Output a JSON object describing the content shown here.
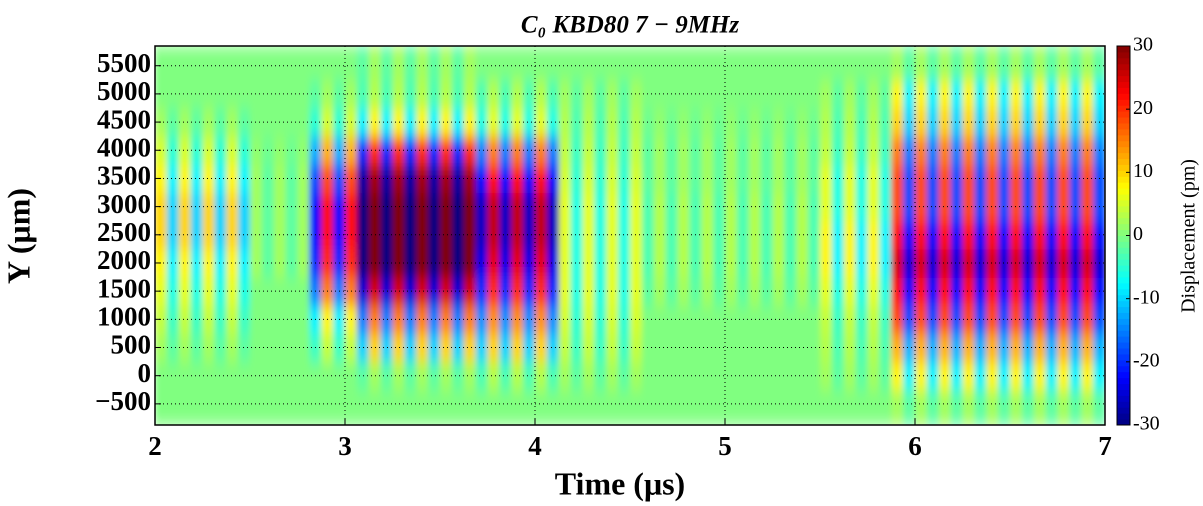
{
  "chart_data": {
    "type": "heatmap",
    "title": "C₀   KBD80   7 − 9MHz",
    "xlabel": "Time (μs)",
    "ylabel": "Y (μm)",
    "colorbar_label": "Displacement (pm)",
    "xlim": [
      2,
      7
    ],
    "ylim": [
      -875,
      5850
    ],
    "xticks": [
      2,
      3,
      4,
      5,
      6,
      7
    ],
    "yticks": [
      {
        "value": -500,
        "label": "−500"
      },
      0,
      500,
      1000,
      1500,
      2000,
      2500,
      3000,
      3500,
      4000,
      4500,
      5000,
      5500
    ],
    "clim": [
      -30,
      30
    ],
    "cticks": [
      {
        "value": -30,
        "label": "-30"
      },
      {
        "value": -20,
        "label": "-20"
      },
      {
        "value": -10,
        "label": "-10"
      },
      0,
      10,
      20,
      30
    ],
    "colormap": "jet",
    "grid": true,
    "x": [
      2.03125,
      2.09375,
      2.15625,
      2.21875,
      2.28125,
      2.34375,
      2.40625,
      2.46875,
      2.53125,
      2.59375,
      2.65625,
      2.71875,
      2.78125,
      2.84375,
      2.90625,
      2.96875,
      3.03125,
      3.09375,
      3.15625,
      3.21875,
      3.28125,
      3.34375,
      3.40625,
      3.46875,
      3.53125,
      3.59375,
      3.65625,
      3.71875,
      3.78125,
      3.84375,
      3.90625,
      3.96875,
      4.03125,
      4.09375,
      4.15625,
      4.21875,
      4.28125,
      4.34375,
      4.40625,
      4.46875,
      4.53125,
      4.59375,
      4.65625,
      4.71875,
      4.78125,
      4.84375,
      4.90625,
      4.96875,
      5.03125,
      5.09375,
      5.15625,
      5.21875,
      5.28125,
      5.34375,
      5.40625,
      5.46875,
      5.53125,
      5.59375,
      5.65625,
      5.71875,
      5.78125,
      5.84375,
      5.90625,
      5.96875,
      6.03125,
      6.09375,
      6.15625,
      6.21875,
      6.28125,
      6.34375,
      6.40625,
      6.46875,
      6.53125,
      6.59375,
      6.65625,
      6.71875,
      6.78125,
      6.84375,
      6.90625,
      6.96875
    ],
    "y": [
      -500,
      0,
      500,
      1000,
      1500,
      2000,
      2500,
      3000,
      3500,
      4000,
      4500,
      5000,
      5500
    ],
    "z": [
      [
        0,
        0,
        0,
        0,
        0,
        0,
        0,
        0,
        0,
        0,
        0,
        0,
        0,
        0,
        0,
        0,
        0,
        0,
        0,
        0,
        0,
        0,
        0,
        0,
        0,
        0,
        0,
        0,
        0,
        0,
        0,
        0,
        0,
        0,
        0,
        0,
        0,
        0,
        0,
        0,
        0,
        0,
        0,
        0,
        0,
        0,
        0,
        0,
        0,
        0,
        0,
        0,
        0,
        0,
        0,
        0,
        0,
        0,
        0,
        0,
        0,
        0,
        2,
        -2,
        2,
        -2,
        2,
        -2,
        2,
        -2,
        2,
        -2,
        2,
        -2,
        2,
        -2,
        2,
        -2,
        2,
        -2
      ],
      [
        0,
        0,
        0,
        0,
        0,
        0,
        0,
        0,
        0,
        0,
        0,
        0,
        0,
        0,
        0,
        0,
        0,
        -2,
        2,
        -2,
        2,
        -2,
        2,
        -2,
        2,
        -2,
        2,
        -3,
        3,
        -3,
        3,
        -3,
        3,
        -3,
        2,
        -2,
        2,
        -2,
        2,
        -2,
        2,
        0,
        0,
        0,
        0,
        0,
        0,
        0,
        0,
        0,
        0,
        0,
        0,
        0,
        0,
        0,
        2,
        -2,
        2,
        -2,
        2,
        -2,
        8,
        -8,
        8,
        -8,
        8,
        -8,
        8,
        -8,
        8,
        -8,
        8,
        -8,
        8,
        -8,
        8,
        -8,
        8,
        -8
      ],
      [
        2,
        -2,
        2,
        -2,
        2,
        -2,
        2,
        -2,
        0,
        0,
        0,
        0,
        0,
        -4,
        4,
        -4,
        4,
        -10,
        10,
        -10,
        10,
        -10,
        10,
        -10,
        10,
        -10,
        10,
        -10,
        10,
        -10,
        10,
        -10,
        10,
        -10,
        4,
        -4,
        4,
        -4,
        4,
        -4,
        4,
        0,
        0,
        0,
        0,
        0,
        0,
        0,
        0,
        0,
        0,
        0,
        0,
        0,
        0,
        0,
        3,
        -3,
        3,
        -3,
        3,
        -3,
        12,
        -12,
        12,
        -12,
        12,
        -12,
        12,
        -12,
        12,
        -12,
        12,
        -12,
        12,
        -12,
        12,
        -12,
        12,
        -12
      ],
      [
        4,
        -4,
        4,
        -4,
        4,
        -4,
        4,
        -4,
        0,
        0,
        0,
        0,
        0,
        -8,
        8,
        -8,
        8,
        -15,
        15,
        -15,
        15,
        -15,
        15,
        -15,
        15,
        -15,
        15,
        -14,
        14,
        -14,
        14,
        -14,
        14,
        -14,
        5,
        -5,
        5,
        -5,
        5,
        -5,
        5,
        0,
        0,
        0,
        0,
        0,
        0,
        0,
        0,
        0,
        0,
        0,
        0,
        0,
        0,
        0,
        4,
        -4,
        4,
        -4,
        4,
        -4,
        18,
        -18,
        18,
        -18,
        18,
        -18,
        18,
        -18,
        18,
        -18,
        18,
        -18,
        18,
        -18,
        18,
        -18,
        18,
        -18
      ],
      [
        6,
        -6,
        6,
        -6,
        6,
        -6,
        6,
        -6,
        0,
        0,
        0,
        0,
        0,
        -15,
        15,
        -15,
        15,
        -25,
        25,
        -25,
        25,
        -25,
        25,
        -25,
        25,
        -25,
        25,
        -20,
        20,
        -20,
        20,
        -20,
        20,
        -20,
        6,
        -6,
        6,
        -6,
        6,
        -6,
        6,
        -2,
        2,
        -2,
        2,
        -2,
        2,
        -2,
        2,
        -2,
        2,
        -2,
        2,
        -2,
        2,
        -2,
        6,
        -6,
        6,
        -6,
        6,
        -6,
        22,
        -22,
        22,
        -22,
        22,
        -22,
        22,
        -22,
        22,
        -22,
        22,
        -22,
        22,
        -22,
        22,
        -22,
        22,
        -22
      ],
      [
        8,
        -8,
        8,
        -8,
        8,
        -8,
        8,
        -8,
        2,
        -2,
        2,
        -2,
        2,
        -20,
        20,
        -20,
        20,
        -30,
        30,
        -30,
        30,
        -30,
        30,
        -30,
        30,
        -30,
        30,
        -24,
        24,
        -24,
        24,
        -24,
        24,
        -24,
        6,
        -6,
        6,
        -6,
        6,
        -6,
        6,
        -3,
        3,
        -3,
        3,
        -3,
        3,
        -3,
        3,
        -3,
        3,
        -3,
        3,
        -3,
        3,
        -3,
        8,
        -8,
        8,
        -8,
        8,
        -8,
        25,
        -25,
        25,
        -25,
        25,
        -25,
        25,
        -25,
        25,
        -25,
        25,
        -25,
        25,
        -25,
        25,
        -25,
        25,
        -25
      ],
      [
        10,
        -10,
        10,
        -10,
        10,
        -10,
        10,
        -10,
        2,
        -2,
        2,
        -2,
        2,
        -22,
        22,
        -22,
        22,
        -30,
        30,
        -30,
        30,
        -30,
        30,
        -30,
        30,
        -30,
        30,
        -26,
        26,
        -26,
        26,
        -26,
        26,
        -26,
        6,
        -6,
        6,
        -6,
        6,
        -6,
        6,
        -3,
        3,
        -3,
        3,
        -3,
        3,
        -3,
        3,
        -3,
        3,
        -3,
        3,
        -3,
        3,
        -3,
        8,
        -8,
        8,
        -8,
        8,
        -8,
        22,
        -22,
        22,
        -22,
        22,
        -22,
        22,
        -22,
        22,
        -22,
        22,
        -22,
        22,
        -22,
        22,
        -22,
        22,
        -22
      ],
      [
        10,
        -10,
        10,
        -10,
        10,
        -10,
        10,
        -10,
        2,
        -2,
        2,
        -2,
        2,
        -22,
        22,
        -22,
        22,
        -30,
        30,
        -30,
        30,
        -30,
        30,
        -30,
        30,
        -30,
        30,
        -26,
        26,
        -26,
        26,
        -26,
        26,
        -26,
        6,
        -6,
        6,
        -6,
        6,
        -6,
        6,
        -3,
        3,
        -3,
        3,
        -3,
        3,
        -3,
        3,
        -3,
        3,
        -3,
        3,
        -3,
        3,
        -3,
        6,
        -6,
        6,
        -6,
        6,
        -6,
        18,
        -18,
        18,
        -18,
        18,
        -18,
        18,
        -18,
        18,
        -18,
        18,
        -18,
        18,
        -18,
        18,
        -18,
        18,
        -18
      ],
      [
        8,
        -8,
        8,
        -8,
        8,
        -8,
        8,
        -8,
        2,
        -2,
        2,
        -2,
        2,
        -18,
        18,
        -18,
        18,
        -28,
        28,
        -28,
        28,
        -28,
        28,
        -28,
        28,
        -28,
        28,
        -22,
        22,
        -22,
        22,
        -22,
        22,
        -22,
        5,
        -5,
        5,
        -5,
        5,
        -5,
        5,
        -2,
        2,
        -2,
        2,
        -2,
        2,
        -2,
        2,
        -2,
        2,
        -2,
        2,
        -2,
        2,
        -2,
        6,
        -6,
        6,
        -6,
        6,
        -6,
        18,
        -18,
        18,
        -18,
        18,
        -18,
        18,
        -18,
        18,
        -18,
        18,
        -18,
        18,
        -18,
        18,
        -18,
        18,
        -18
      ],
      [
        5,
        -5,
        5,
        -5,
        5,
        -5,
        5,
        -5,
        1,
        -1,
        1,
        -1,
        1,
        -12,
        12,
        -12,
        12,
        -20,
        20,
        -20,
        20,
        -20,
        20,
        -20,
        20,
        -20,
        20,
        -15,
        15,
        -15,
        15,
        -15,
        15,
        -15,
        4,
        -4,
        4,
        -4,
        4,
        -4,
        4,
        -2,
        2,
        -2,
        2,
        -2,
        2,
        -2,
        2,
        -2,
        2,
        -2,
        2,
        -2,
        2,
        -2,
        4,
        -4,
        4,
        -4,
        4,
        -4,
        15,
        -15,
        15,
        -15,
        15,
        -15,
        15,
        -15,
        15,
        -15,
        15,
        -15,
        15,
        -15,
        15,
        -15,
        15,
        -15
      ],
      [
        2,
        -2,
        2,
        -2,
        2,
        -2,
        2,
        -2,
        0,
        0,
        0,
        0,
        0,
        -5,
        5,
        -5,
        5,
        -8,
        8,
        -8,
        8,
        -8,
        8,
        -8,
        8,
        -8,
        8,
        -6,
        6,
        -6,
        6,
        -6,
        6,
        -6,
        3,
        -3,
        3,
        -3,
        3,
        -3,
        3,
        -1,
        1,
        -1,
        1,
        -1,
        1,
        -1,
        1,
        -1,
        1,
        -1,
        1,
        -1,
        1,
        -1,
        3,
        -3,
        3,
        -3,
        3,
        -3,
        10,
        -10,
        10,
        -10,
        10,
        -10,
        10,
        -10,
        10,
        -10,
        10,
        -10,
        10,
        -10,
        10,
        -10,
        10,
        -10
      ],
      [
        0,
        0,
        0,
        0,
        0,
        0,
        0,
        0,
        0,
        0,
        0,
        0,
        0,
        -2,
        2,
        -2,
        2,
        -3,
        3,
        -3,
        3,
        -3,
        3,
        -3,
        3,
        -3,
        3,
        -3,
        3,
        -3,
        3,
        -3,
        3,
        -3,
        2,
        -2,
        2,
        -2,
        2,
        -2,
        2,
        0,
        0,
        0,
        0,
        0,
        0,
        0,
        0,
        0,
        0,
        0,
        0,
        0,
        0,
        0,
        2,
        -2,
        2,
        -2,
        2,
        -2,
        8,
        -8,
        8,
        -8,
        8,
        -8,
        8,
        -8,
        8,
        -8,
        8,
        -8,
        8,
        -8,
        8,
        -8,
        8,
        -8
      ],
      [
        0,
        0,
        0,
        0,
        0,
        0,
        0,
        0,
        0,
        0,
        0,
        0,
        0,
        0,
        0,
        0,
        0,
        -2,
        2,
        -2,
        2,
        -2,
        2,
        -2,
        2,
        -2,
        2,
        0,
        0,
        0,
        0,
        0,
        0,
        0,
        0,
        0,
        0,
        0,
        0,
        0,
        0,
        0,
        0,
        0,
        0,
        0,
        0,
        0,
        0,
        0,
        0,
        0,
        0,
        0,
        0,
        0,
        0,
        0,
        0,
        0,
        0,
        0,
        2,
        -2,
        2,
        -2,
        2,
        -2,
        2,
        -2,
        2,
        -2,
        2,
        -2,
        2,
        -2,
        2,
        -2,
        2,
        -2
      ]
    ]
  }
}
